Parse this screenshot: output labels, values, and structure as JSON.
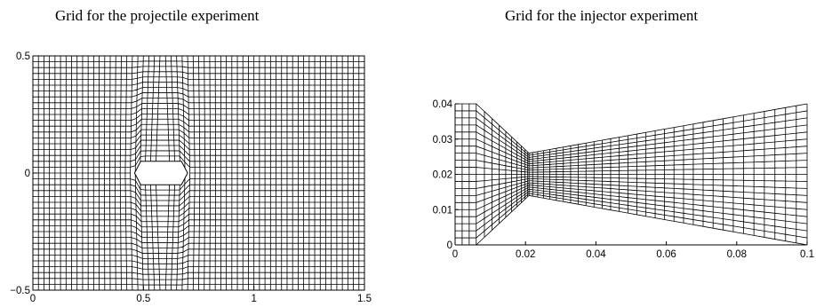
{
  "left_plot": {
    "title": "Grid for the projectile experiment",
    "xlim": [
      0,
      1.5
    ],
    "ylim": [
      -0.5,
      0.5
    ],
    "x_ticks": [
      "0",
      "0.5",
      "1",
      "1.5"
    ],
    "y_ticks": [
      "0.5",
      "0",
      "−0.5"
    ],
    "x_tick_values": [
      0,
      0.5,
      1,
      1.5
    ],
    "y_tick_values": [
      0.5,
      0,
      -0.5
    ],
    "grid_cells_x": 60,
    "grid_cells_y": 40,
    "obstacle": {
      "shape": "hexagon",
      "x_range": [
        0.46,
        0.7
      ],
      "y_range": [
        -0.05,
        0.05
      ]
    }
  },
  "right_plot": {
    "title": "Grid for the injector experiment",
    "xlim": [
      0,
      0.1
    ],
    "ylim": [
      0,
      0.04
    ],
    "x_ticks": [
      "0",
      "0.02",
      "0.04",
      "0.06",
      "0.08",
      "0.1"
    ],
    "y_ticks": [
      "0.04",
      "0.03",
      "0.02",
      "0.01",
      "0"
    ],
    "x_tick_values": [
      0,
      0.02,
      0.04,
      0.06,
      0.08,
      0.1
    ],
    "y_tick_values": [
      0.04,
      0.03,
      0.02,
      0.01,
      0
    ],
    "nozzle_profile": {
      "x": [
        0,
        0.006,
        0.021,
        0.1
      ],
      "upper": [
        0.04,
        0.04,
        0.026,
        0.04
      ],
      "lower": [
        0,
        0,
        0.014,
        0
      ]
    },
    "grid_cells_x": 45,
    "grid_cells_y": 20
  }
}
